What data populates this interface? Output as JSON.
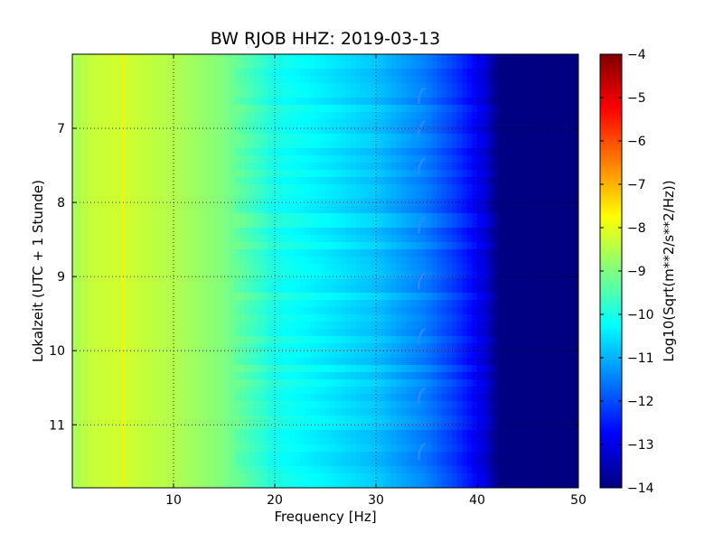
{
  "chart_data": {
    "type": "heatmap",
    "title": "BW RJOB HHZ: 2019-03-13",
    "xlabel": "Frequency [Hz]",
    "ylabel": "Lokalzeit (UTC + 1 Stunde)",
    "xlim": [
      0,
      50
    ],
    "ylim": [
      11.85,
      6.0
    ],
    "x_ticks": [
      10,
      20,
      30,
      40,
      50
    ],
    "y_ticks": [
      7,
      8,
      9,
      10,
      11
    ],
    "x_tick_labels": [
      "10",
      "20",
      "30",
      "40",
      "50"
    ],
    "y_tick_labels": [
      "7",
      "8",
      "9",
      "10",
      "11"
    ],
    "grid": true,
    "colormap": "jet",
    "colorbar": {
      "label": "Log10(Sqrt(m**2/s**2/Hz))",
      "range": [
        -14,
        -4
      ],
      "ticks": [
        -4,
        -5,
        -6,
        -7,
        -8,
        -9,
        -10,
        -11,
        -12,
        -13,
        -14
      ],
      "tick_labels": [
        "−4",
        "−5",
        "−6",
        "−7",
        "−8",
        "−9",
        "−10",
        "−11",
        "−12",
        "−13",
        "−14"
      ]
    },
    "spectrum_profile": {
      "frequency_hz": [
        0,
        2,
        5,
        10,
        15,
        18,
        20,
        25,
        30,
        35,
        38,
        40,
        41,
        42,
        50
      ],
      "log10_amplitude": [
        -8.6,
        -8.3,
        -8.2,
        -8.5,
        -9.0,
        -9.6,
        -10.0,
        -10.4,
        -10.8,
        -11.5,
        -12.2,
        -12.8,
        -13.2,
        -13.95,
        -14.0
      ]
    },
    "narrowband_line_hz": 5.0,
    "transient_events": {
      "frequency_hz": 34.5,
      "local_time_h": [
        6.55,
        7.0,
        7.5,
        8.3,
        9.05,
        9.8,
        10.6,
        11.35
      ]
    }
  }
}
